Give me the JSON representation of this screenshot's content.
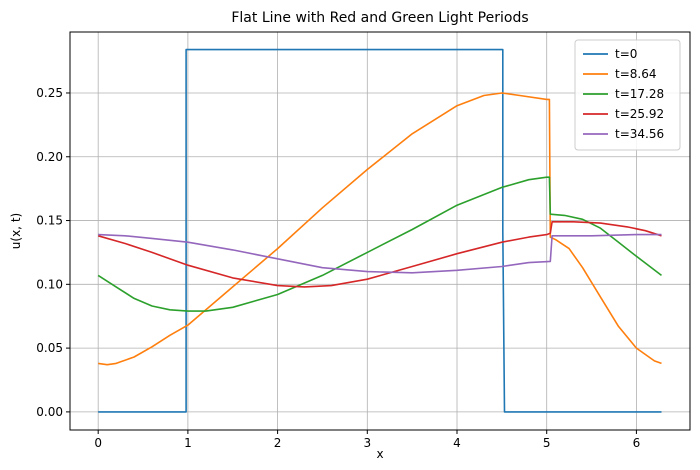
{
  "chart_data": {
    "type": "line",
    "title": "Flat Line with Red and Green Light Periods",
    "xlabel": "x",
    "ylabel": "u(x, t)",
    "xlim": [
      -0.3142,
      6.5974
    ],
    "ylim": [
      -0.0142,
      0.2978
    ],
    "xticks": [
      0,
      1,
      2,
      3,
      4,
      5,
      6
    ],
    "yticks": [
      0.0,
      0.05,
      0.1,
      0.15,
      0.2,
      0.25
    ],
    "ytick_labels": [
      "0.00",
      "0.05",
      "0.10",
      "0.15",
      "0.20",
      "0.25"
    ],
    "grid": true,
    "legend": "top-right",
    "series": [
      {
        "name": "t=0",
        "color": "#1f77b4",
        "x": [
          0,
          0.98,
          0.98,
          1.0,
          4.51,
          4.51,
          4.53,
          6.28
        ],
        "y": [
          0,
          0,
          0.284,
          0.284,
          0.284,
          0.142,
          0,
          0
        ]
      },
      {
        "name": "t=8.64",
        "color": "#ff7f0e",
        "x": [
          0,
          0.1,
          0.2,
          0.4,
          0.6,
          0.8,
          1.0,
          1.5,
          2.0,
          2.5,
          3.0,
          3.5,
          4.0,
          4.3,
          4.5,
          4.7,
          5.0,
          5.03,
          5.04,
          5.1,
          5.25,
          5.4,
          5.6,
          5.8,
          6.0,
          6.2,
          6.28
        ],
        "y": [
          0.038,
          0.037,
          0.038,
          0.043,
          0.051,
          0.06,
          0.068,
          0.098,
          0.128,
          0.16,
          0.19,
          0.218,
          0.24,
          0.248,
          0.25,
          0.248,
          0.245,
          0.245,
          0.137,
          0.135,
          0.128,
          0.113,
          0.09,
          0.067,
          0.05,
          0.04,
          0.038
        ]
      },
      {
        "name": "t=17.28",
        "color": "#2ca02c",
        "x": [
          0,
          0.2,
          0.4,
          0.6,
          0.8,
          1.0,
          1.2,
          1.5,
          2.0,
          2.5,
          3.0,
          3.5,
          4.0,
          4.5,
          4.8,
          5.0,
          5.03,
          5.04,
          5.2,
          5.4,
          5.6,
          5.8,
          6.0,
          6.28
        ],
        "y": [
          0.107,
          0.098,
          0.089,
          0.083,
          0.08,
          0.079,
          0.079,
          0.082,
          0.092,
          0.107,
          0.125,
          0.143,
          0.162,
          0.176,
          0.182,
          0.184,
          0.184,
          0.155,
          0.154,
          0.151,
          0.144,
          0.133,
          0.122,
          0.107
        ]
      },
      {
        "name": "t=25.92",
        "color": "#d62728",
        "x": [
          0,
          0.3,
          0.6,
          1.0,
          1.5,
          2.0,
          2.3,
          2.6,
          3.0,
          3.5,
          4.0,
          4.5,
          4.8,
          5.0,
          5.04,
          5.06,
          5.3,
          5.6,
          5.9,
          6.1,
          6.28
        ],
        "y": [
          0.138,
          0.132,
          0.125,
          0.115,
          0.105,
          0.099,
          0.098,
          0.099,
          0.104,
          0.114,
          0.124,
          0.133,
          0.137,
          0.139,
          0.14,
          0.149,
          0.149,
          0.148,
          0.145,
          0.142,
          0.138
        ]
      },
      {
        "name": "t=34.56",
        "color": "#9467bd",
        "x": [
          0,
          0.3,
          0.6,
          1.0,
          1.5,
          2.0,
          2.5,
          3.0,
          3.5,
          4.0,
          4.5,
          4.8,
          5.04,
          5.06,
          5.5,
          6.0,
          6.28
        ],
        "y": [
          0.139,
          0.138,
          0.136,
          0.133,
          0.127,
          0.12,
          0.113,
          0.11,
          0.109,
          0.111,
          0.114,
          0.117,
          0.118,
          0.138,
          0.138,
          0.139,
          0.139
        ]
      }
    ]
  }
}
